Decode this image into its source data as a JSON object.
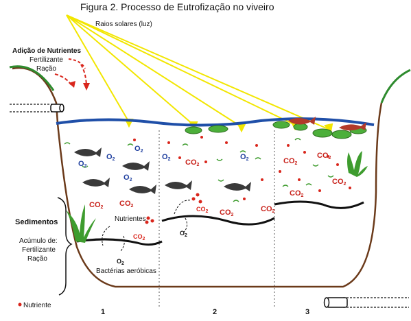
{
  "title": "Figura 2. Processo de Eutrofização no viveiro",
  "labels": {
    "sunlight": "Raios solares (luz)",
    "nutrient_addition": "Adição de Nutrientes",
    "fertilizer": "Fertilizante",
    "feed": "Ração",
    "sediments": "Sedimentos",
    "accumulation_line1": "Acúmulo de:",
    "accumulation_line2": "Fertilizante",
    "accumulation_line3": "Ração",
    "nutrients": "Nutrientes",
    "aerobic_bacteria": "Bactérias aeróbicas",
    "legend_nutrient": "Nutriente"
  },
  "gas": {
    "o2": "O",
    "co2": "CO",
    "subscript": "2"
  },
  "stages": [
    "1",
    "2",
    "3"
  ],
  "colors": {
    "water_line": "#1f4fa8",
    "bank": "#6b3a1a",
    "grass": "#2e8b2e",
    "sun_ray": "#f2e600",
    "nutrient_dot": "#d9261c",
    "fish": "#3a3a3a",
    "dead_fish": "#b23a2a",
    "algae": "#4caf3a"
  }
}
